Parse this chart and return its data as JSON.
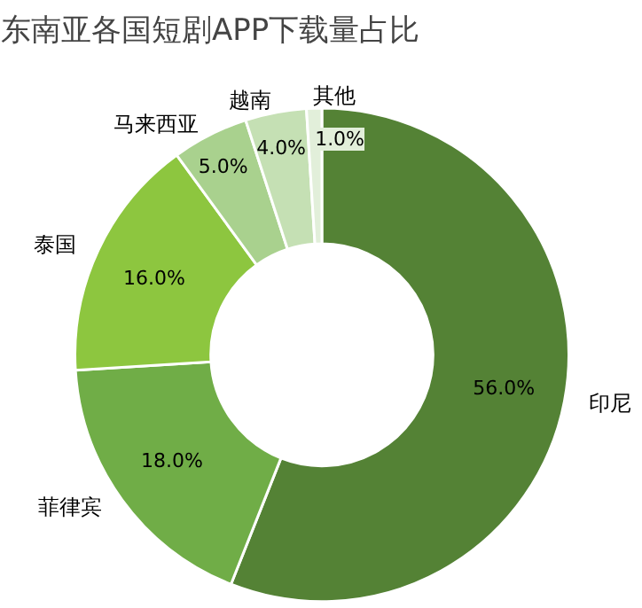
{
  "chart_data": {
    "type": "donut",
    "title": "东南亚各国短剧APP下载量占比",
    "categories": [
      "印尼",
      "菲律宾",
      "泰国",
      "马来西亚",
      "越南",
      "其他"
    ],
    "values": [
      56.0,
      18.0,
      16.0,
      5.0,
      4.0,
      1.0
    ],
    "value_labels": [
      "56.0%",
      "18.0%",
      "16.0%",
      "5.0%",
      "4.0%",
      "1.0%"
    ],
    "colors": [
      "#548235",
      "#70ad47",
      "#8dc63f",
      "#a9d18e",
      "#c5e0b4",
      "#e2efda"
    ],
    "legend": false
  }
}
